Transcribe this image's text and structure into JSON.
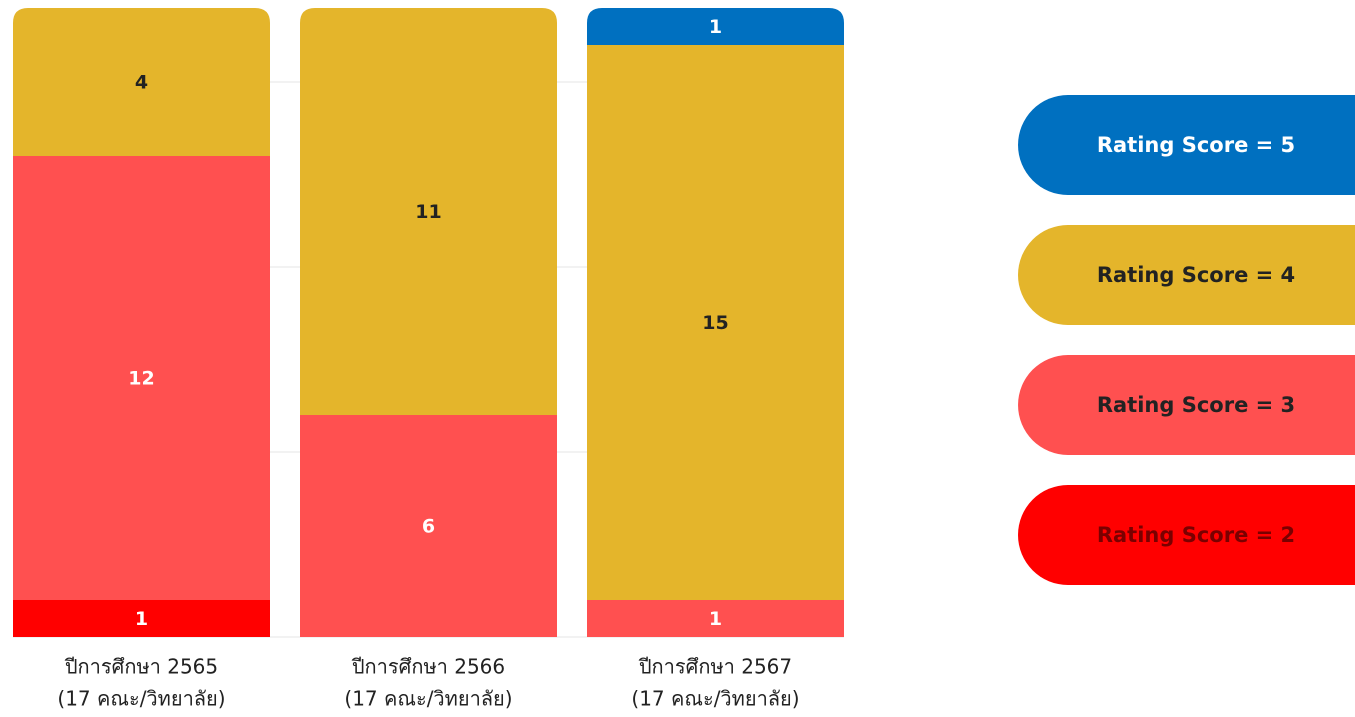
{
  "chart_data": {
    "type": "stacked_bar",
    "categories": [
      [
        "ปีการศึกษา 2565",
        "(17 คณะ/วิทยาลัย)"
      ],
      [
        "ปีการศึกษา 2566",
        "(17 คณะ/วิทยาลัย)"
      ],
      [
        "ปีการศึกษา 2567",
        "(17 คณะ/วิทยาลัย)"
      ]
    ],
    "series": [
      {
        "name": "Rating Score = 2",
        "color": "#ff0000",
        "values": [
          1,
          0,
          0
        ]
      },
      {
        "name": "Rating Score = 3",
        "color": "#ff5050",
        "values": [
          12,
          6,
          1
        ]
      },
      {
        "name": "Rating Score = 4",
        "color": "#e4b52b",
        "values": [
          4,
          11,
          15
        ]
      },
      {
        "name": "Rating Score = 5",
        "color": "#0070c0",
        "values": [
          0,
          0,
          1
        ]
      }
    ],
    "ylim": [
      0,
      17
    ],
    "yticks": [
      0,
      5,
      10,
      15
    ],
    "grid": true,
    "legend": "right"
  }
}
